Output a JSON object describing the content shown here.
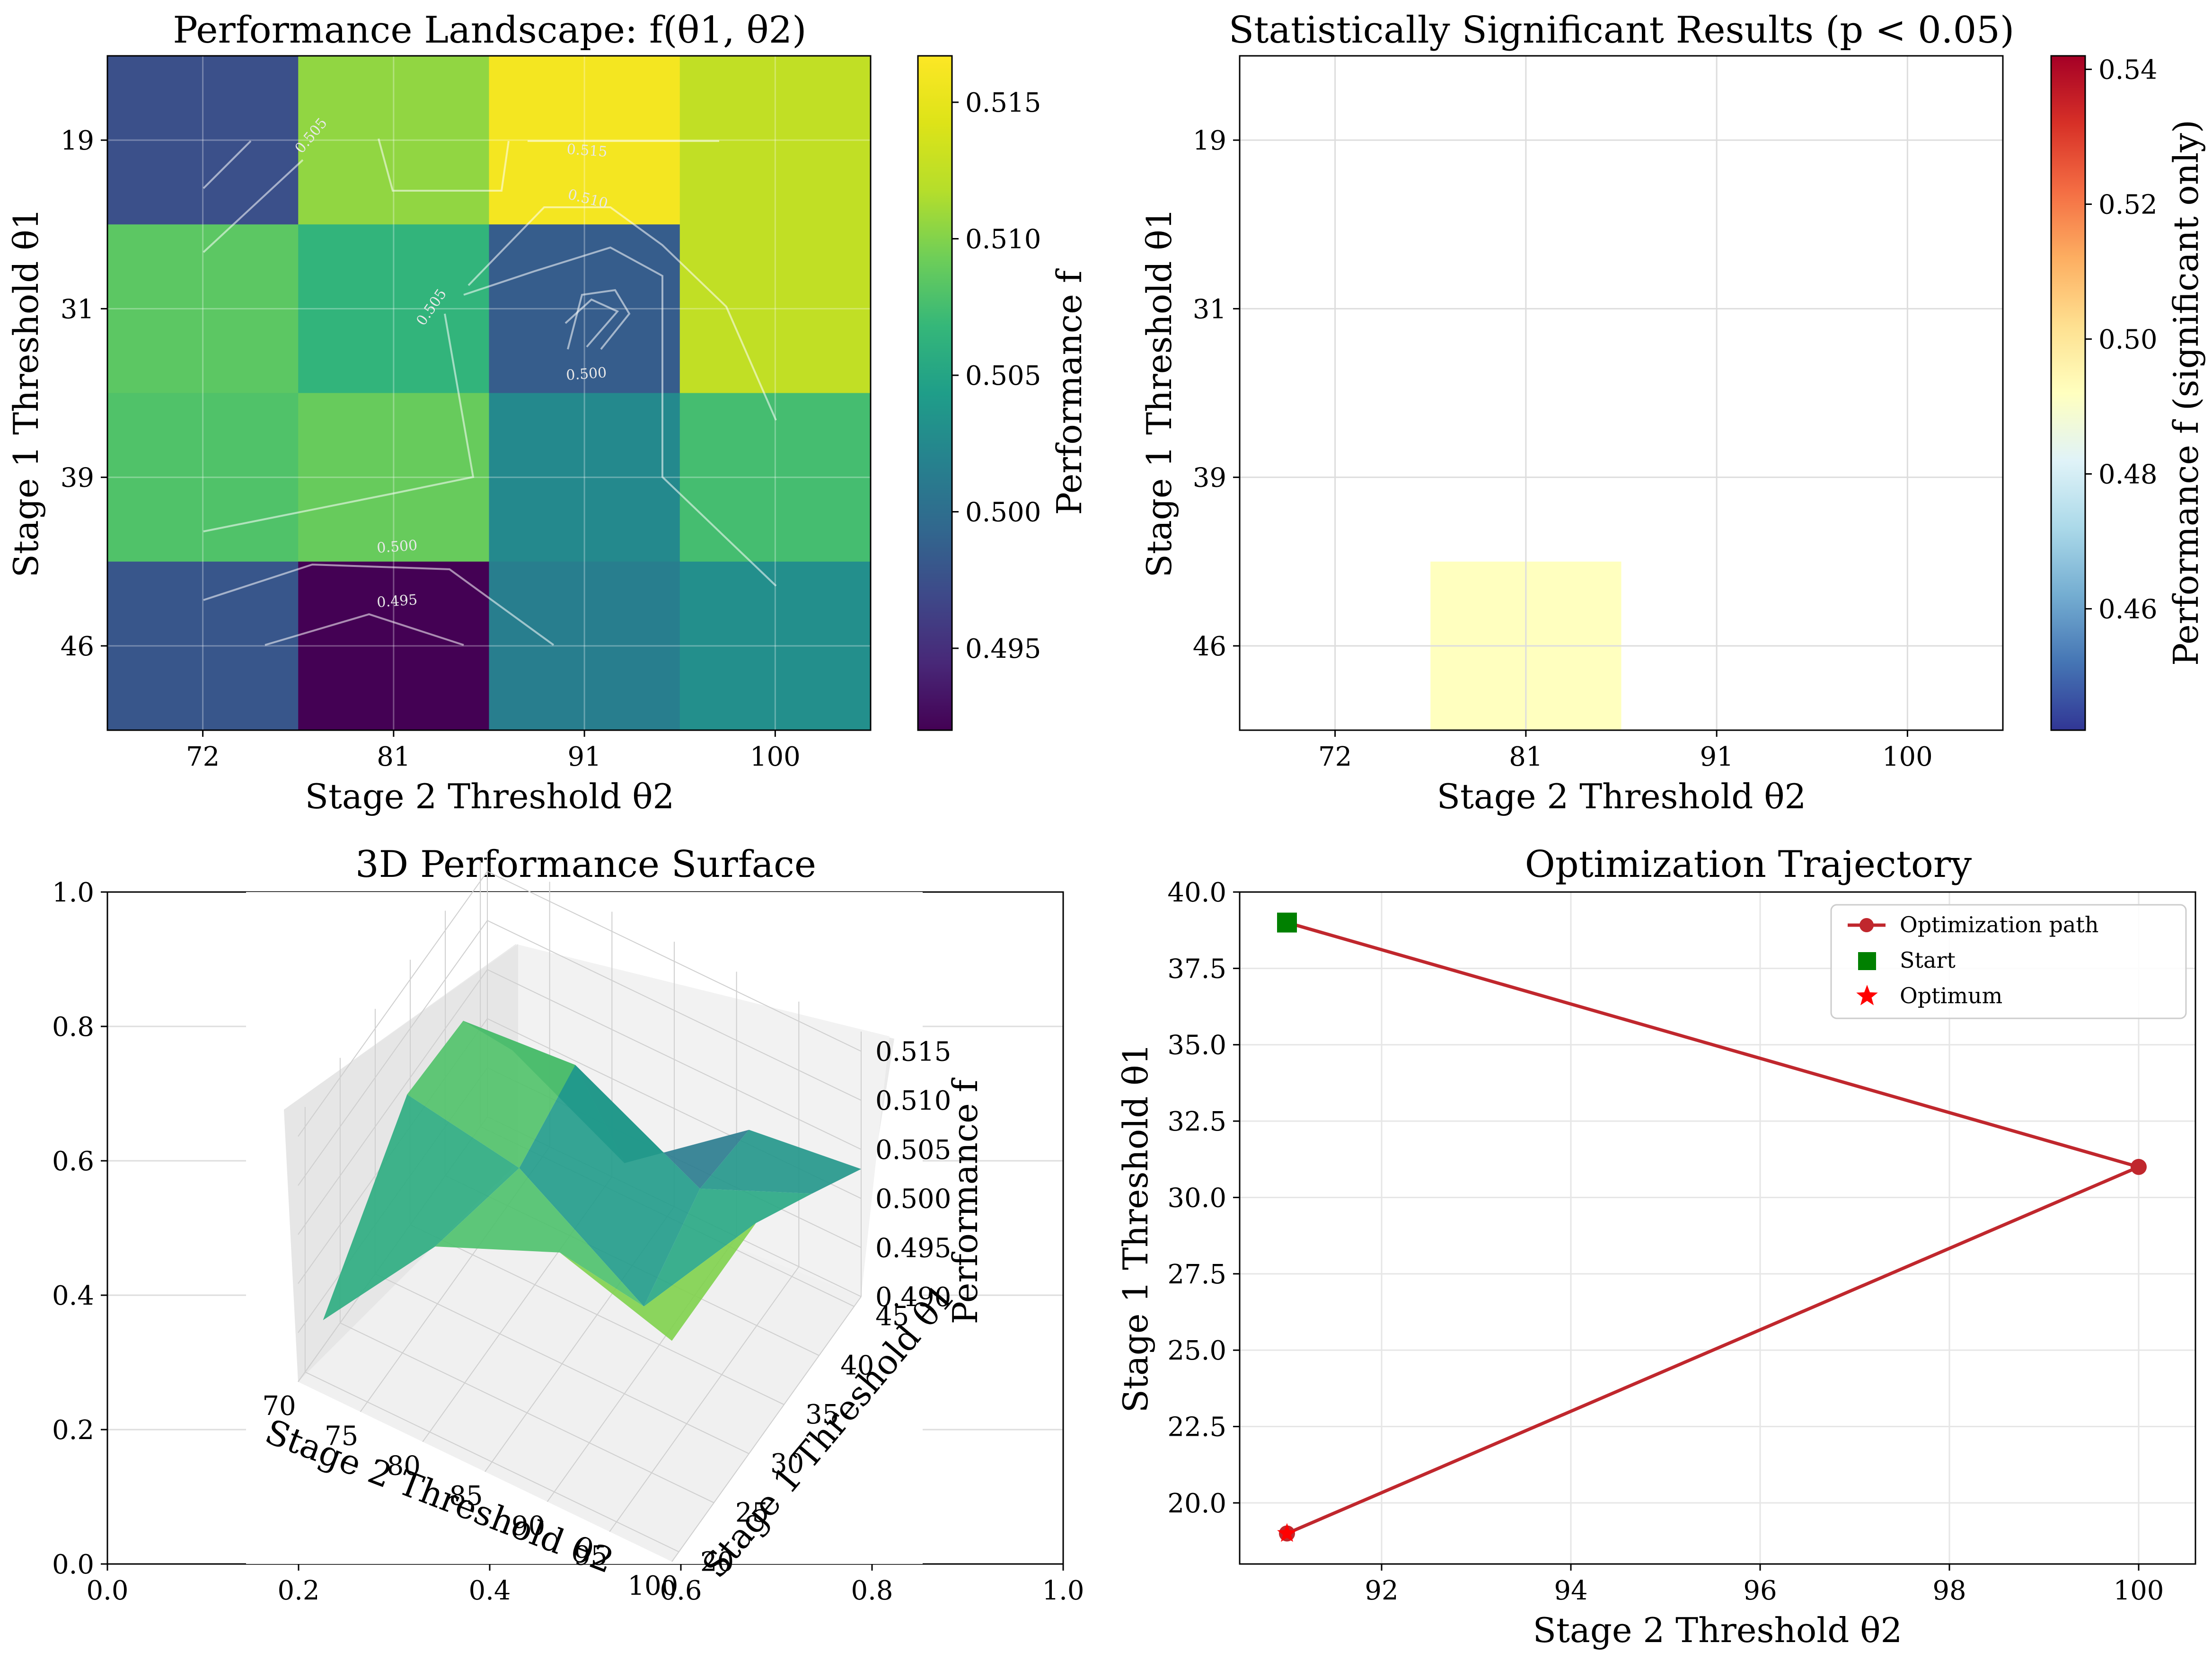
{
  "heatmap": {
    "title": "Performance Landscape: f(θ1, θ2)",
    "xlabel": "Stage 2 Threshold θ2",
    "ylabel": "Stage 1 Threshold θ1",
    "x_ticks": [
      "72",
      "81",
      "91",
      "100"
    ],
    "y_ticks": [
      "19",
      "31",
      "39",
      "46"
    ],
    "colorbar_label": "Performance f",
    "colorbar_ticks": [
      "0.495",
      "0.500",
      "0.505",
      "0.510",
      "0.515"
    ],
    "contour_labels": [
      "0.505",
      "0.515",
      "0.510",
      "0.505",
      "0.500",
      "0.500",
      "0.495"
    ]
  },
  "significant": {
    "title": "Statistically Significant Results (p < 0.05)",
    "xlabel": "Stage 2 Threshold θ2",
    "ylabel": "Stage 1 Threshold θ1",
    "x_ticks": [
      "72",
      "81",
      "91",
      "100"
    ],
    "y_ticks": [
      "19",
      "31",
      "39",
      "46"
    ],
    "colorbar_label": "Performance f (significant only)",
    "colorbar_ticks": [
      "0.46",
      "0.48",
      "0.50",
      "0.52",
      "0.54"
    ]
  },
  "surface": {
    "title": "3D Performance Surface",
    "outer_x_ticks": [
      "0.0",
      "0.2",
      "0.4",
      "0.6",
      "0.8",
      "1.0"
    ],
    "outer_y_ticks": [
      "0.0",
      "0.2",
      "0.4",
      "0.6",
      "0.8",
      "1.0"
    ],
    "x3_label": "Stage 2 Threshold θ2",
    "y3_label": "Stage 1 Threshold θ1",
    "z3_label": "Performance f",
    "x3_ticks": [
      "70",
      "75",
      "80",
      "85",
      "90",
      "95",
      "100"
    ],
    "y3_ticks": [
      "20",
      "25",
      "30",
      "35",
      "40",
      "45"
    ],
    "z3_ticks": [
      "0.490",
      "0.495",
      "0.500",
      "0.505",
      "0.510",
      "0.515"
    ]
  },
  "trajectory": {
    "title": "Optimization Trajectory",
    "xlabel": "Stage 2 Threshold θ2",
    "ylabel": "Stage 1 Threshold θ1",
    "x_ticks": [
      "92",
      "94",
      "96",
      "98",
      "100"
    ],
    "y_ticks": [
      "20.0",
      "22.5",
      "25.0",
      "27.5",
      "30.0",
      "32.5",
      "35.0",
      "37.5",
      "40.0"
    ],
    "legend": [
      "Optimization path",
      "Start",
      "Optimum"
    ]
  },
  "colors": {
    "path": "#c0272d",
    "start": "#008000",
    "optimum": "#ff0000",
    "highlight": "#ffffbf"
  },
  "chart_data": [
    {
      "type": "heatmap",
      "title": "Performance Landscape: f(θ1, θ2)",
      "x_categories": [
        72,
        81,
        91,
        100
      ],
      "y_categories": [
        19,
        31,
        39,
        46
      ],
      "values": [
        [
          0.4975,
          0.5105,
          0.516,
          0.5125
        ],
        [
          0.5085,
          0.5065,
          0.4985,
          0.5125
        ],
        [
          0.508,
          0.509,
          0.5025,
          0.5075
        ],
        [
          0.498,
          0.492,
          0.5015,
          0.503
        ]
      ],
      "colormap": "viridis",
      "vmin": 0.492,
      "vmax": 0.5167
    },
    {
      "type": "heatmap",
      "title": "Statistically Significant Results (p < 0.05)",
      "x_categories": [
        72,
        81,
        91,
        100
      ],
      "y_categories": [
        19,
        31,
        39,
        46
      ],
      "significant_cells": [
        {
          "theta1": 46,
          "theta2": 81,
          "value": 0.492
        }
      ],
      "colormap": "RdYlBu_r",
      "vmin": 0.442,
      "vmax": 0.542
    },
    {
      "type": "surface",
      "title": "3D Performance Surface",
      "x": [
        72,
        81,
        91,
        100
      ],
      "y": [
        19,
        31,
        39,
        46
      ],
      "z": [
        [
          0.4975,
          0.5105,
          0.516,
          0.5125
        ],
        [
          0.5085,
          0.5065,
          0.4985,
          0.5125
        ],
        [
          0.508,
          0.509,
          0.5025,
          0.5075
        ],
        [
          0.498,
          0.492,
          0.5015,
          0.503
        ]
      ],
      "xlim": [
        70,
        100
      ],
      "ylim": [
        19,
        46
      ],
      "zlim": [
        0.49,
        0.517
      ]
    },
    {
      "type": "line",
      "title": "Optimization Trajectory",
      "series": [
        {
          "name": "Optimization path",
          "x": [
            91,
            100,
            91
          ],
          "y": [
            39,
            31,
            19
          ]
        },
        {
          "name": "Start",
          "x": [
            91
          ],
          "y": [
            39
          ]
        },
        {
          "name": "Optimum",
          "x": [
            91
          ],
          "y": [
            19
          ]
        }
      ],
      "xlim": [
        90.5,
        100.6
      ],
      "ylim": [
        18.0,
        40.0
      ],
      "xlabel": "Stage 2 Threshold θ2",
      "ylabel": "Stage 1 Threshold θ1",
      "legend_position": "top-right"
    }
  ]
}
